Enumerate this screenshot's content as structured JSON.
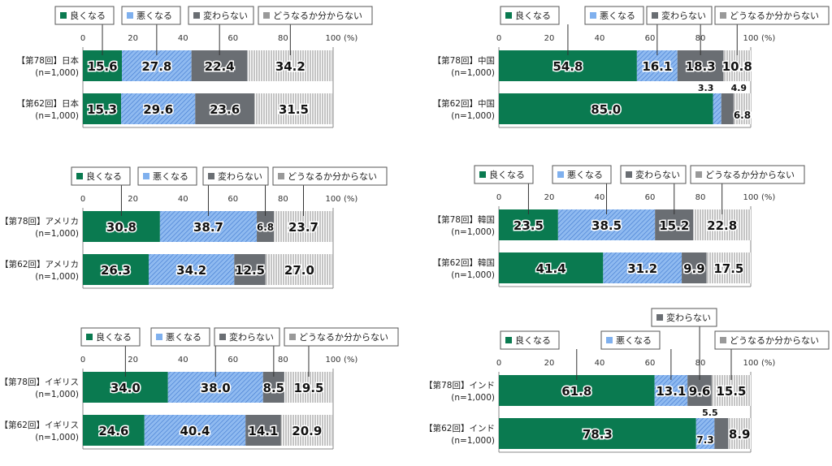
{
  "chart_data": [
    {
      "type": "bar",
      "orientation": "horizontal",
      "stacked": true,
      "country": "日本",
      "categories": [
        "【第78回】日本",
        "【第62回】日本"
      ],
      "sample": "(n=1,000)",
      "series": [
        {
          "name": "良くなる",
          "values": [
            15.6,
            15.3
          ]
        },
        {
          "name": "悪くなる",
          "values": [
            27.8,
            29.6
          ]
        },
        {
          "name": "変わらない",
          "values": [
            22.4,
            23.6
          ]
        },
        {
          "name": "どうなるか分からない",
          "values": [
            34.2,
            31.5
          ]
        }
      ]
    },
    {
      "type": "bar",
      "orientation": "horizontal",
      "stacked": true,
      "country": "中国",
      "categories": [
        "【第78回】中国",
        "【第62回】中国"
      ],
      "sample": "(n=1,000)",
      "series": [
        {
          "name": "良くなる",
          "values": [
            54.8,
            85.0
          ]
        },
        {
          "name": "悪くなる",
          "values": [
            16.1,
            3.3
          ]
        },
        {
          "name": "変わらない",
          "values": [
            18.3,
            4.9
          ]
        },
        {
          "name": "どうなるか分からない",
          "values": [
            10.8,
            6.8
          ]
        }
      ]
    },
    {
      "type": "bar",
      "orientation": "horizontal",
      "stacked": true,
      "country": "アメリカ",
      "categories": [
        "【第78回】アメリカ",
        "【第62回】アメリカ"
      ],
      "sample": "(n=1,000)",
      "series": [
        {
          "name": "良くなる",
          "values": [
            30.8,
            26.3
          ]
        },
        {
          "name": "悪くなる",
          "values": [
            38.7,
            34.2
          ]
        },
        {
          "name": "変わらない",
          "values": [
            6.8,
            12.5
          ]
        },
        {
          "name": "どうなるか分からない",
          "values": [
            23.7,
            27.0
          ]
        }
      ]
    },
    {
      "type": "bar",
      "orientation": "horizontal",
      "stacked": true,
      "country": "韓国",
      "categories": [
        "【第78回】韓国",
        "【第62回】韓国"
      ],
      "sample": "(n=1,000)",
      "series": [
        {
          "name": "良くなる",
          "values": [
            23.5,
            41.4
          ]
        },
        {
          "name": "悪くなる",
          "values": [
            38.5,
            31.2
          ]
        },
        {
          "name": "変わらない",
          "values": [
            15.2,
            9.9
          ]
        },
        {
          "name": "どうなるか分からない",
          "values": [
            22.8,
            17.5
          ]
        }
      ]
    },
    {
      "type": "bar",
      "orientation": "horizontal",
      "stacked": true,
      "country": "イギリス",
      "categories": [
        "【第78回】イギリス",
        "【第62回】イギリス"
      ],
      "sample": "(n=1,000)",
      "series": [
        {
          "name": "良くなる",
          "values": [
            34.0,
            24.6
          ]
        },
        {
          "name": "悪くなる",
          "values": [
            38.0,
            40.4
          ]
        },
        {
          "name": "変わらない",
          "values": [
            8.5,
            14.1
          ]
        },
        {
          "name": "どうなるか分からない",
          "values": [
            19.5,
            20.9
          ]
        }
      ]
    },
    {
      "type": "bar",
      "orientation": "horizontal",
      "stacked": true,
      "country": "インド",
      "categories": [
        "【第78回】インド",
        "【第62回】インド"
      ],
      "sample": "(n=1,000)",
      "series": [
        {
          "name": "良くなる",
          "values": [
            61.8,
            78.3
          ]
        },
        {
          "name": "悪くなる",
          "values": [
            13.1,
            7.3
          ]
        },
        {
          "name": "変わらない",
          "values": [
            9.6,
            5.5
          ]
        },
        {
          "name": "どうなるか分からない",
          "values": [
            15.5,
            8.9
          ]
        }
      ]
    }
  ],
  "axis": {
    "ticks": [
      0,
      20,
      40,
      60,
      80,
      100
    ],
    "unit": "(%)",
    "xlim": [
      0,
      100
    ]
  },
  "colors": {
    "good": "#0a7a50",
    "bad": "#7fb0ee",
    "same": "#6a6e73",
    "unknown": "#d6d6d6"
  }
}
